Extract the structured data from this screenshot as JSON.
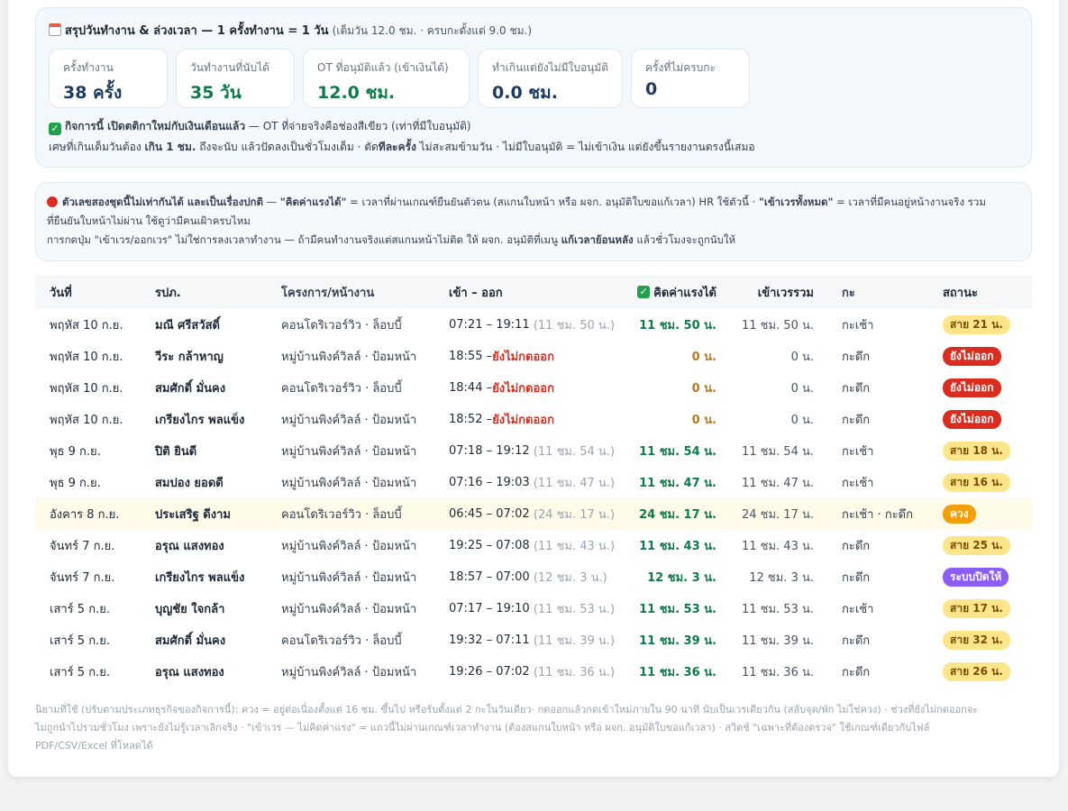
{
  "summary": {
    "title": "สรุปวันทำงาน & ล่วงเวลา — 1 ครั้งทำงาน = 1 วัน",
    "note": "(เต็มวัน 12.0 ชม. · ครบกะตั้งแต่ 9.0 ชม.)",
    "stats": [
      {
        "label": "ครั้งทำงาน",
        "value": "38 ครั้ง"
      },
      {
        "label": "วันทำงานที่นับได้",
        "value": "35 วัน"
      },
      {
        "label": "OT ที่อนุมัติแล้ว (เข้าเงินได้)",
        "value": "12.0 ชม."
      },
      {
        "label": "ทำเกินแต่ยังไม่มีใบอนุมัติ",
        "value": "0.0 ชม."
      },
      {
        "label": "ครั้งที่ไม่ครบกะ",
        "value": "0"
      }
    ],
    "line1_bold": "กิจการนี้ เปิดตติกาใหม่กับเงินเดือนแล้ว",
    "line1_rest": " — OT ที่จ่ายจริงคือช่องสีเขียว (เท่าที่มีใบอนุมัติ)",
    "line2_a": "เศษที่เกินเต็มวันต้อง ",
    "line2_b": "เกิน 1 ชม.",
    "line2_c": " ถึงจะนับ แล้วปัดลงเป็นชั่วโมงเต็ม · ตัด",
    "line2_d": "ทีละครั้ง",
    "line2_e": " ไม่สะสมข้ามวัน · ไม่มีใบอนุมัติ = ไม่เข้าเงิน แต่ยังขึ้นรายงานตรงนี้เสมอ"
  },
  "warning": {
    "l1_a": "ตัวเลขสองชุดนี้ไม่เท่ากันได้ และเป็นเรื่องปกติ",
    "l1_b": " — ",
    "l1_c": "\"คิดค่าแรงได้\"",
    "l1_d": " = เวลาที่ผ่านเกณฑ์ยืนยันตัวตน (สแกนใบหน้า หรือ ผจก. อนุมัติใบขอแก้เวลา) HR ใช้ตัวนี้ · ",
    "l1_e": "\"เข้าเวรทั้งหมด\"",
    "l1_f": " = เวลาที่มีคนอยู่หน้างานจริง รวม",
    "l2": "ที่ยืนยันใบหน้าไม่ผ่าน ใช้ดูว่ามีคนเฝ้าครบไหม",
    "l3_a": "การกดปุ่ม \"เข้าเวร/ออกเวร\" ไม่ใช่การลงเวลาทำงาน — ถ้ามีคนทำงานจริงแต่สแกนหน้าไม่ติด ให้ ผจก. อนุมัติที่เมนู ",
    "l3_b": "แก้เวลาย้อนหลัง",
    "l3_c": " แล้วชั่วโมงจะถูกนับให้"
  },
  "table": {
    "headers": {
      "date": "วันที่",
      "employee": "รปภ.",
      "project": "โครงการ/หน้างาน",
      "time": "เข้า – ออก",
      "payable": "คิดค่าแรงได้",
      "on_duty": "เข้าเวรรวม",
      "shift": "กะ",
      "status": "สถานะ"
    },
    "rows": [
      {
        "date": "พฤหัส 10 ก.ย.",
        "employee": "มณี ศรีสวัสดิ์",
        "project": "คอนโดริเวอร์วิว · ล็อบบี้",
        "time": "07:21 – 19:11",
        "duration": "(11 ชม. 50 น.)",
        "missing": "",
        "payable": "11 ชม. 50 น.",
        "on_duty": "11 ชม. 50 น.",
        "shift": "กะเช้า",
        "status": "สาย 21 น.",
        "status_type": "late"
      },
      {
        "date": "พฤหัส 10 ก.ย.",
        "employee": "วีระ กล้าหาญ",
        "project": "หมู่บ้านพิงค์วิลล์ · ป้อมหน้า",
        "time": "18:55 – ",
        "duration": "",
        "missing": "ยังไม่กดออก",
        "payable": "0 น.",
        "on_duty": "0 น.",
        "shift": "กะดึก",
        "status": "ยังไม่ออก",
        "status_type": "notout"
      },
      {
        "date": "พฤหัส 10 ก.ย.",
        "employee": "สมศักดิ์ มั่นคง",
        "project": "คอนโดริเวอร์วิว · ล็อบบี้",
        "time": "18:44 – ",
        "duration": "",
        "missing": "ยังไม่กดออก",
        "payable": "0 น.",
        "on_duty": "0 น.",
        "shift": "กะดึก",
        "status": "ยังไม่ออก",
        "status_type": "notout"
      },
      {
        "date": "พฤหัส 10 ก.ย.",
        "employee": "เกรียงไกร พลแข็ง",
        "project": "หมู่บ้านพิงค์วิลล์ · ป้อมหน้า",
        "time": "18:52 – ",
        "duration": "",
        "missing": "ยังไม่กดออก",
        "payable": "0 น.",
        "on_duty": "0 น.",
        "shift": "กะดึก",
        "status": "ยังไม่ออก",
        "status_type": "notout"
      },
      {
        "date": "พุธ 9 ก.ย.",
        "employee": "ปิติ ยินดี",
        "project": "หมู่บ้านพิงค์วิลล์ · ป้อมหน้า",
        "time": "07:18 – 19:12",
        "duration": "(11 ชม. 54 น.)",
        "missing": "",
        "payable": "11 ชม. 54 น.",
        "on_duty": "11 ชม. 54 น.",
        "shift": "กะเช้า",
        "status": "สาย 18 น.",
        "status_type": "late"
      },
      {
        "date": "พุธ 9 ก.ย.",
        "employee": "สมปอง ยอดดี",
        "project": "หมู่บ้านพิงค์วิลล์ · ป้อมหน้า",
        "time": "07:16 – 19:03",
        "duration": "(11 ชม. 47 น.)",
        "missing": "",
        "payable": "11 ชม. 47 น.",
        "on_duty": "11 ชม. 47 น.",
        "shift": "กะเช้า",
        "status": "สาย 16 น.",
        "status_type": "late"
      },
      {
        "date": "อังคาร 8 ก.ย.",
        "employee": "ประเสริฐ ดีงาม",
        "project": "คอนโดริเวอร์วิว · ล็อบบี้",
        "time": "06:45 – 07:02",
        "duration": "(24 ชม. 17 น.)",
        "missing": "",
        "payable": "24 ชม. 17 น.",
        "on_duty": "24 ชม. 17 น.",
        "shift": "กะเช้า · กะดึก",
        "status": "ควง",
        "status_type": "double"
      },
      {
        "date": "จันทร์ 7 ก.ย.",
        "employee": "อรุณ แสงทอง",
        "project": "หมู่บ้านพิงค์วิลล์ · ป้อมหน้า",
        "time": "19:25 – 07:08",
        "duration": "(11 ชม. 43 น.)",
        "missing": "",
        "payable": "11 ชม. 43 น.",
        "on_duty": "11 ชม. 43 น.",
        "shift": "กะดึก",
        "status": "สาย 25 น.",
        "status_type": "late"
      },
      {
        "date": "จันทร์ 7 ก.ย.",
        "employee": "เกรียงไกร พลแข็ง",
        "project": "หมู่บ้านพิงค์วิลล์ · ป้อมหน้า",
        "time": "18:57 – 07:00",
        "duration": "(12 ชม. 3 น.)",
        "missing": "",
        "payable": "12 ชม. 3 น.",
        "on_duty": "12 ชม. 3 น.",
        "shift": "กะดึก",
        "status": "ระบบปิดให้",
        "status_type": "sys"
      },
      {
        "date": "เสาร์ 5 ก.ย.",
        "employee": "บุญชัย ใจกล้า",
        "project": "หมู่บ้านพิงค์วิลล์ · ป้อมหน้า",
        "time": "07:17 – 19:10",
        "duration": "(11 ชม. 53 น.)",
        "missing": "",
        "payable": "11 ชม. 53 น.",
        "on_duty": "11 ชม. 53 น.",
        "shift": "กะเช้า",
        "status": "สาย 17 น.",
        "status_type": "late"
      },
      {
        "date": "เสาร์ 5 ก.ย.",
        "employee": "สมศักดิ์ มั่นคง",
        "project": "คอนโดริเวอร์วิว · ล็อบบี้",
        "time": "19:32 – 07:11",
        "duration": "(11 ชม. 39 น.)",
        "missing": "",
        "payable": "11 ชม. 39 น.",
        "on_duty": "11 ชม. 39 น.",
        "shift": "กะดึก",
        "status": "สาย 32 น.",
        "status_type": "late"
      },
      {
        "date": "เสาร์ 5 ก.ย.",
        "employee": "อรุณ แสงทอง",
        "project": "หมู่บ้านพิงค์วิลล์ · ป้อมหน้า",
        "time": "19:26 – 07:02",
        "duration": "(11 ชม. 36 น.)",
        "missing": "",
        "payable": "11 ชม. 36 น.",
        "on_duty": "11 ชม. 36 น.",
        "shift": "กะดึก",
        "status": "สาย 26 น.",
        "status_type": "late"
      }
    ]
  },
  "footer": {
    "l1": "นิยามที่ใช้ (ปรับตามประเภทธุรกิจของกิจการนี้): ควง = อยู่ต่อเนื่องตั้งแต่ 16 ชม. ขึ้นไป หรือรับตั้งแต่ 2 กะในวันเดียว· กดออกแล้วกดเข้าใหม่ภายใน 90 นาที นับเป็นเวรเดียวกัน (สลับจุด/พัก ไม่ใช่ควง) · ช่วงที่ยังไม่กดออกจะ",
    "l2": "ไม่ถูกนำไปรวมชั่วโมง เพราะยังไม่รู้เวลาเลิกจริง · \"เข้าเวร — ไม่คิดค่าแรง\" = แถวนี้ไม่ผ่านเกณฑ์เวลาทำงาน (ต้องสแกนใบหน้า หรือ ผจก. อนุมัติใบขอแก้เวลา) · สวิตช์ \"เฉพาะที่ต้องตรวจ\" ใช้เกณฑ์เดียวกับไฟล์",
    "l3": "PDF/CSV/Excel ที่โหลดได้"
  }
}
